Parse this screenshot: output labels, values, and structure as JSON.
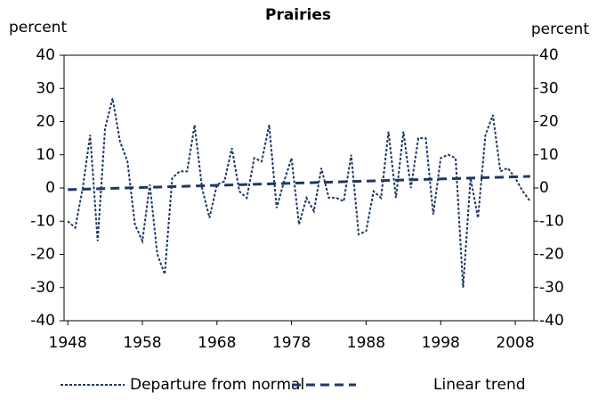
{
  "chart_data": {
    "type": "line",
    "title": "Prairies",
    "y_label": "percent",
    "y2_label": "percent",
    "x": [
      1948,
      1949,
      1950,
      1951,
      1952,
      1953,
      1954,
      1955,
      1956,
      1957,
      1958,
      1959,
      1960,
      1961,
      1962,
      1963,
      1964,
      1965,
      1966,
      1967,
      1968,
      1969,
      1970,
      1971,
      1972,
      1973,
      1974,
      1975,
      1976,
      1977,
      1978,
      1979,
      1980,
      1981,
      1982,
      1983,
      1984,
      1985,
      1986,
      1987,
      1988,
      1989,
      1990,
      1991,
      1992,
      1993,
      1994,
      1995,
      1996,
      1997,
      1998,
      1999,
      2000,
      2001,
      2002,
      2003,
      2004,
      2005,
      2006,
      2007,
      2008,
      2009,
      2010
    ],
    "series": [
      {
        "name": "Departure from normal",
        "color": "#1f3864",
        "line_style": "dotted",
        "values": [
          -10,
          -12,
          0,
          16,
          -16,
          18,
          27,
          14,
          8,
          -11,
          -16,
          1,
          -20,
          -26,
          3,
          5,
          5,
          19,
          0,
          -9,
          1,
          2,
          12,
          -1,
          -3,
          9,
          8,
          19,
          -6,
          2,
          9,
          -11,
          -3,
          -7,
          6,
          -3,
          -3,
          -4,
          10,
          -14,
          -13,
          -1,
          -3,
          17,
          -3,
          17,
          0,
          15,
          15,
          -8,
          9,
          10,
          9,
          -30,
          3,
          -9,
          16,
          22,
          5,
          6,
          3,
          -1,
          -4
        ]
      },
      {
        "name": "Linear trend",
        "color": "#1f3864",
        "line_style": "dashed",
        "x": [
          1948,
          2010
        ],
        "values": [
          -0.5,
          3.5
        ]
      }
    ],
    "xlim": [
      1947.5,
      2010.5
    ],
    "xticks": [
      1948,
      1958,
      1968,
      1978,
      1988,
      1998,
      2008
    ],
    "ylim": [
      -40,
      40
    ],
    "yticks": [
      -40,
      -30,
      -20,
      -10,
      0,
      10,
      20,
      30,
      40
    ],
    "y2lim": [
      -40,
      40
    ],
    "y2ticks": [
      -40,
      -30,
      -20,
      -10,
      0,
      10,
      20,
      30,
      40
    ],
    "grid": false,
    "legend": "bottom"
  }
}
